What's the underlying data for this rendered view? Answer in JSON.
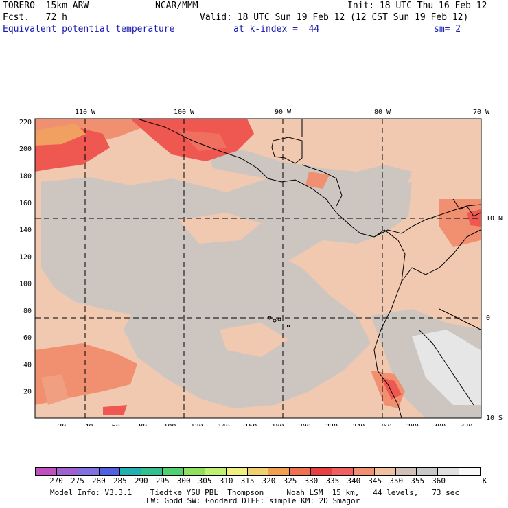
{
  "header": {
    "model": "TORERO  15km ARW",
    "center": "NCAR/MMM",
    "init": "Init: 18 UTC Thu 16 Feb 12",
    "fcst": "Fcst.   72 h",
    "valid": "Valid: 18 UTC Sun 19 Feb 12 (12 CST Sun 19 Feb 12)",
    "field": "Equivalent potential temperature",
    "level": "at k-index =  44",
    "smooth": "sm= 2"
  },
  "map": {
    "lon_labels": [
      "110 W",
      "100 W",
      "90 W",
      "80 W",
      "70 W"
    ],
    "lat_labels": [
      "10 N",
      "0",
      "10 S"
    ],
    "x_ticks": [
      "20",
      "40",
      "60",
      "80",
      "100",
      "120",
      "140",
      "160",
      "180",
      "200",
      "220",
      "240",
      "260",
      "280",
      "300",
      "320"
    ],
    "y_ticks": [
      "220",
      "200",
      "180",
      "160",
      "140",
      "120",
      "100",
      "80",
      "60",
      "40",
      "20"
    ]
  },
  "colorbar": {
    "colors": [
      "#c050c0",
      "#a060d0",
      "#8070e0",
      "#5060e0",
      "#20b0b0",
      "#30c090",
      "#50d070",
      "#90e060",
      "#c0f070",
      "#f0f080",
      "#f0d070",
      "#f0a050",
      "#f07050",
      "#e84040",
      "#f06060",
      "#f09070",
      "#f0c0a0",
      "#d0c0b8",
      "#c8c8c8",
      "#e0e0e0",
      "#f8f8f8"
    ],
    "labels": [
      "270",
      "275",
      "280",
      "285",
      "290",
      "295",
      "300",
      "305",
      "310",
      "315",
      "320",
      "325",
      "330",
      "335",
      "340",
      "345",
      "350",
      "355",
      "360"
    ],
    "unit": "K"
  },
  "footer": {
    "line1": "Model Info: V3.3.1    Tiedtke YSU PBL  Thompson     Noah LSM  15 km,   44 levels,   73 sec",
    "line2": "LW: Godd SW: Goddard DIFF: simple KM: 2D Smagor"
  }
}
